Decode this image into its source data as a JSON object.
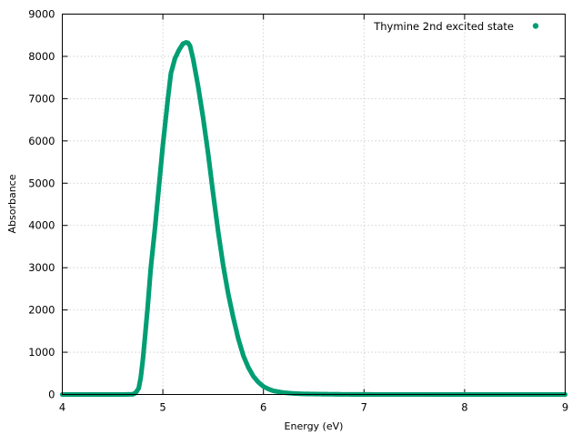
{
  "chart_data": {
    "type": "scatter",
    "xlabel": "Energy (eV)",
    "ylabel": "Absorbance",
    "xlim": [
      4,
      9
    ],
    "ylim": [
      0,
      9000
    ],
    "xticks": [
      4,
      5,
      6,
      7,
      8,
      9
    ],
    "yticks": [
      0,
      1000,
      2000,
      3000,
      4000,
      5000,
      6000,
      7000,
      8000,
      9000
    ],
    "grid": true,
    "legend_position": "top-right",
    "series": [
      {
        "name": "Thymine 2nd excited state",
        "color": "#009e73",
        "marker": "circle",
        "x": [
          4.0,
          4.2,
          4.4,
          4.6,
          4.7,
          4.73,
          4.76,
          4.78,
          4.8,
          4.82,
          4.85,
          4.88,
          4.92,
          4.96,
          5.0,
          5.05,
          5.08,
          5.12,
          5.16,
          5.2,
          5.23,
          5.25,
          5.27,
          5.3,
          5.35,
          5.4,
          5.45,
          5.5,
          5.55,
          5.6,
          5.65,
          5.7,
          5.75,
          5.8,
          5.85,
          5.9,
          5.95,
          6.0,
          6.05,
          6.1,
          6.2,
          6.3,
          6.4,
          6.6,
          6.8,
          7.0,
          7.5,
          8.0,
          8.5,
          9.0
        ],
        "y": [
          0,
          0,
          0,
          0,
          5,
          40,
          150,
          400,
          800,
          1300,
          2100,
          3000,
          3900,
          4900,
          5900,
          7000,
          7600,
          7950,
          8150,
          8300,
          8330,
          8320,
          8250,
          7950,
          7300,
          6550,
          5700,
          4750,
          3850,
          3050,
          2380,
          1820,
          1320,
          920,
          640,
          430,
          290,
          190,
          130,
          85,
          45,
          25,
          15,
          8,
          4,
          2,
          1,
          0,
          0,
          0
        ]
      }
    ]
  }
}
